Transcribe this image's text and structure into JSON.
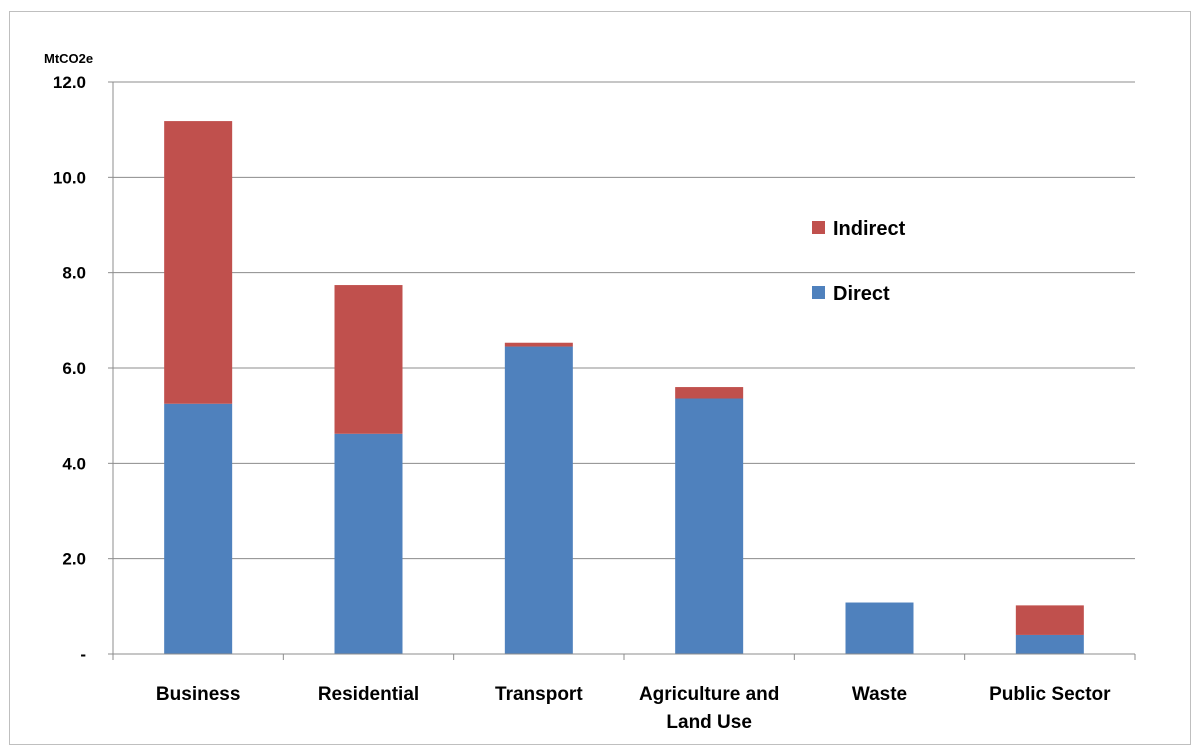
{
  "chart_data": {
    "type": "bar",
    "stacked": true,
    "unit_label": "MtCO2e",
    "categories": [
      [
        "Business"
      ],
      [
        "Residential"
      ],
      [
        "Transport"
      ],
      [
        "Agriculture and",
        "Land Use"
      ],
      [
        "Waste"
      ],
      [
        "Public Sector"
      ]
    ],
    "series": [
      {
        "name": "Direct",
        "color": "#4f81bd",
        "values": [
          5.25,
          4.62,
          6.45,
          5.36,
          1.08,
          0.4
        ]
      },
      {
        "name": "Indirect",
        "color": "#c0504d",
        "values": [
          5.93,
          3.12,
          0.08,
          0.24,
          0.0,
          0.62
        ]
      }
    ],
    "ylim": [
      0,
      12
    ],
    "yticks": [
      0,
      2,
      4,
      6,
      8,
      10,
      12
    ],
    "ytick_labels": [
      "-",
      "2.0",
      "4.0",
      "6.0",
      "8.0",
      "10.0",
      "12.0"
    ],
    "grid": true,
    "legend": {
      "position": "right",
      "order": [
        "Indirect",
        "Direct"
      ]
    }
  }
}
